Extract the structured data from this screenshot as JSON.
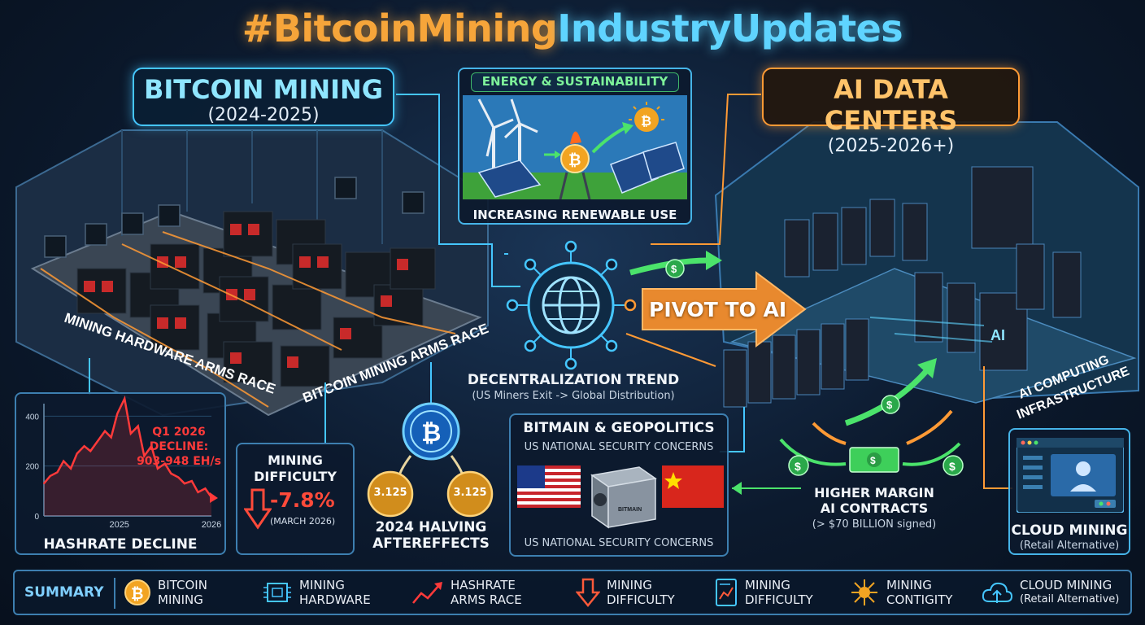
{
  "header": {
    "title_part1": "#BitcoinMining",
    "title_part2": "IndustryUpdates"
  },
  "bitcoin_mining": {
    "title": "BITCOIN MINING",
    "years": "(2024-2025)",
    "floor_label_1": "MINING HARDWARE ARMS RACE",
    "floor_label_2": "BITCOIN MINING ARMS RACE"
  },
  "energy": {
    "title": "ENERGY & SUSTAINABILITY",
    "caption": "INCREASING RENEWABLE USE"
  },
  "ai_centers": {
    "title": "AI DATA CENTERS",
    "years": "(2025-2026+)",
    "side_label_1": "AI COMPUTING",
    "side_label_2": "INFRASTRUCTURE",
    "rack_label": "AI"
  },
  "pivot": {
    "label": "PIVOT TO AI"
  },
  "decentralization": {
    "title": "DECENTRALIZATION TREND",
    "subtitle": "(US Miners Exit -> Global Distribution)"
  },
  "hashrate": {
    "title": "HASHRATE DECLINE",
    "note_1": "Q1 2026",
    "note_2": "DECLINE:",
    "note_3": "903-948 EH/s"
  },
  "difficulty": {
    "title_1": "MINING",
    "title_2": "DIFFICULTY",
    "value": "-7.8%",
    "date": "(MARCH 2026)"
  },
  "halving": {
    "coin_left": "3.125",
    "coin_right": "3.125",
    "title_1": "2024 HALVING",
    "title_2": "AFTEREFFECTS"
  },
  "geopolitics": {
    "title": "BITMAIN & GEOPOLITICS",
    "line_top": "US NATIONAL SECURITY CONCERNS",
    "line_bottom": "US NATIONAL SECURITY CONCERNS",
    "miner_brand": "BITMAIN"
  },
  "contracts": {
    "title_1": "HIGHER MARGIN",
    "title_2": "AI CONTRACTS",
    "detail": "(> $70 BILLION signed)"
  },
  "cloud": {
    "title": "CLOUD MINING",
    "subtitle": "(Retail Alternative)"
  },
  "summary": {
    "label": "SUMMARY",
    "items": [
      {
        "l1": "BITCOIN",
        "l2": "MINING",
        "icon": "bitcoin-coin-icon"
      },
      {
        "l1": "MINING",
        "l2": "HARDWARE",
        "icon": "chip-icon"
      },
      {
        "l1": "HASHRATE",
        "l2": "ARMS RACE",
        "icon": "trend-up-icon"
      },
      {
        "l1": "MINING",
        "l2": "DIFFICULTY",
        "icon": "arrow-down-icon"
      },
      {
        "l1": "MINING",
        "l2": "DIFFICULTY",
        "icon": "document-chart-icon"
      },
      {
        "l1": "MINING",
        "l2": "CONTIGITY",
        "icon": "network-icon"
      },
      {
        "l1": "CLOUD MINING",
        "l2": "(Retail Alternative)",
        "icon": "cloud-upload-icon"
      }
    ]
  },
  "chart_data": {
    "type": "line",
    "title": "HASHRATE DECLINE",
    "x_ticks": [
      "2025",
      "2026"
    ],
    "y_ticks": [
      0,
      200,
      400
    ],
    "ylim": [
      0,
      450
    ],
    "x": [
      0,
      0.6,
      1.3,
      1.9,
      2.6,
      3.2,
      3.9,
      4.5,
      5.2,
      5.9,
      6.5,
      7.1,
      7.8,
      8.4,
      9.1,
      9.7,
      10.4,
      11.0,
      11.7,
      12.3,
      13.0,
      13.6,
      14.3,
      14.9,
      15.6,
      16.2
    ],
    "values": [
      130,
      160,
      175,
      220,
      190,
      250,
      280,
      260,
      300,
      340,
      315,
      410,
      470,
      330,
      360,
      240,
      280,
      190,
      210,
      170,
      155,
      130,
      140,
      95,
      110,
      75
    ],
    "color": "#ff3a3a"
  },
  "colors": {
    "cyan": "#45c6ff",
    "orange": "#ff9a35",
    "green": "#4be36b",
    "gold": "#f2a422",
    "red": "#ff3a3a"
  }
}
